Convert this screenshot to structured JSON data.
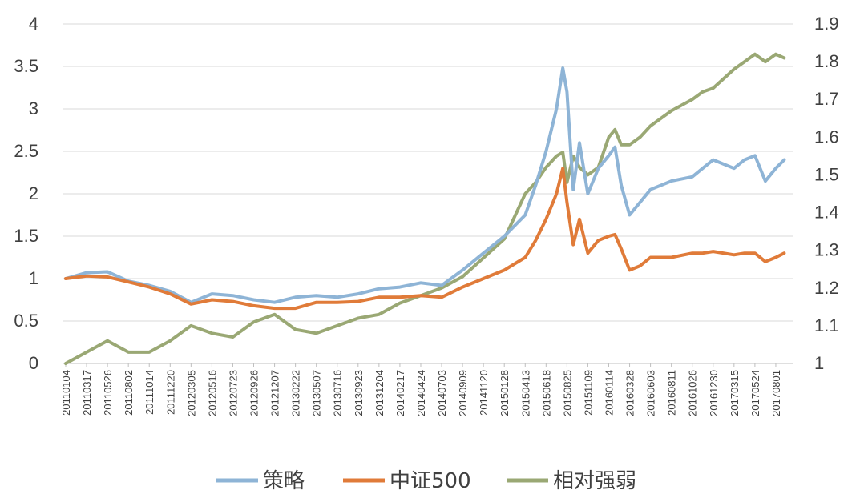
{
  "chart_data": {
    "type": "line",
    "title": "",
    "xlabel": "",
    "ylabel": "",
    "y_left": {
      "ylim": [
        0,
        4
      ],
      "ticks": [
        "0",
        "0.5",
        "1",
        "1.5",
        "2",
        "2.5",
        "3",
        "3.5",
        "4"
      ]
    },
    "y_right": {
      "ylim": [
        1,
        1.9
      ],
      "ticks": [
        "1",
        "1.1",
        "1.2",
        "1.3",
        "1.4",
        "1.5",
        "1.6",
        "1.7",
        "1.8",
        "1.9"
      ]
    },
    "grid": true,
    "legend_position": "bottom",
    "x_tick_labels": [
      "20110104",
      "20110317",
      "20110526",
      "20110802",
      "20111014",
      "20111220",
      "20120305",
      "20120516",
      "20120723",
      "20120926",
      "20121207",
      "20130222",
      "20130507",
      "20130716",
      "20130923",
      "20131204",
      "20140217",
      "20140424",
      "20140703",
      "20140909",
      "20141120",
      "20150128",
      "20150413",
      "20150618",
      "20150825",
      "20151109",
      "20160114",
      "20160328",
      "20160603",
      "20160811",
      "20161026",
      "20161230",
      "20170315",
      "20170524",
      "20170801"
    ],
    "series": [
      {
        "name": "策略",
        "axis": "left",
        "color": "#8eb4d6",
        "x": [
          0,
          1,
          2,
          3,
          4,
          5,
          6,
          7,
          8,
          9,
          10,
          11,
          12,
          13,
          14,
          15,
          16,
          17,
          18,
          19,
          20,
          21,
          22,
          22.5,
          23,
          23.5,
          23.8,
          24,
          24.3,
          24.6,
          25,
          25.5,
          26,
          26.3,
          26.6,
          27,
          27.5,
          28,
          29,
          30,
          30.5,
          31,
          32,
          32.5,
          33,
          33.5,
          34,
          34.4
        ],
        "values": [
          1.0,
          1.07,
          1.08,
          0.97,
          0.92,
          0.85,
          0.72,
          0.82,
          0.8,
          0.75,
          0.72,
          0.78,
          0.8,
          0.78,
          0.82,
          0.88,
          0.9,
          0.95,
          0.92,
          1.1,
          1.3,
          1.5,
          1.75,
          2.1,
          2.5,
          3.0,
          3.48,
          3.2,
          2.05,
          2.6,
          2.0,
          2.3,
          2.45,
          2.55,
          2.1,
          1.75,
          1.9,
          2.05,
          2.15,
          2.2,
          2.3,
          2.4,
          2.3,
          2.4,
          2.45,
          2.15,
          2.3,
          2.4
        ]
      },
      {
        "name": "中证500",
        "axis": "left",
        "color": "#e07b39",
        "x": [
          0,
          1,
          2,
          3,
          4,
          5,
          6,
          7,
          8,
          9,
          10,
          11,
          12,
          13,
          14,
          15,
          16,
          17,
          18,
          19,
          20,
          21,
          22,
          22.5,
          23,
          23.5,
          23.8,
          24,
          24.3,
          24.6,
          25,
          25.5,
          26,
          26.3,
          26.6,
          27,
          27.5,
          28,
          29,
          30,
          30.5,
          31,
          32,
          32.5,
          33,
          33.5,
          34,
          34.4
        ],
        "values": [
          1.0,
          1.03,
          1.02,
          0.96,
          0.9,
          0.82,
          0.7,
          0.75,
          0.73,
          0.68,
          0.65,
          0.65,
          0.72,
          0.72,
          0.73,
          0.78,
          0.78,
          0.8,
          0.78,
          0.9,
          1.0,
          1.1,
          1.25,
          1.45,
          1.7,
          2.0,
          2.3,
          1.9,
          1.4,
          1.7,
          1.3,
          1.45,
          1.5,
          1.52,
          1.35,
          1.1,
          1.15,
          1.25,
          1.25,
          1.3,
          1.3,
          1.32,
          1.28,
          1.3,
          1.3,
          1.2,
          1.25,
          1.3
        ]
      },
      {
        "name": "相对强弱",
        "axis": "right",
        "color": "#9aa874",
        "x": [
          0,
          1,
          2,
          3,
          4,
          5,
          6,
          7,
          8,
          9,
          10,
          11,
          12,
          13,
          14,
          15,
          16,
          17,
          18,
          19,
          20,
          21,
          22,
          22.5,
          23,
          23.5,
          23.8,
          24,
          24.3,
          24.6,
          25,
          25.5,
          26,
          26.3,
          26.6,
          27,
          27.5,
          28,
          29,
          30,
          30.5,
          31,
          32,
          32.5,
          33,
          33.5,
          34,
          34.4
        ],
        "values": [
          1.0,
          1.03,
          1.06,
          1.03,
          1.03,
          1.06,
          1.1,
          1.08,
          1.07,
          1.11,
          1.13,
          1.09,
          1.08,
          1.1,
          1.12,
          1.13,
          1.16,
          1.18,
          1.2,
          1.23,
          1.28,
          1.33,
          1.45,
          1.48,
          1.52,
          1.55,
          1.56,
          1.48,
          1.55,
          1.52,
          1.5,
          1.52,
          1.6,
          1.62,
          1.58,
          1.58,
          1.6,
          1.63,
          1.67,
          1.7,
          1.72,
          1.73,
          1.78,
          1.8,
          1.82,
          1.8,
          1.82,
          1.81
        ]
      }
    ]
  }
}
